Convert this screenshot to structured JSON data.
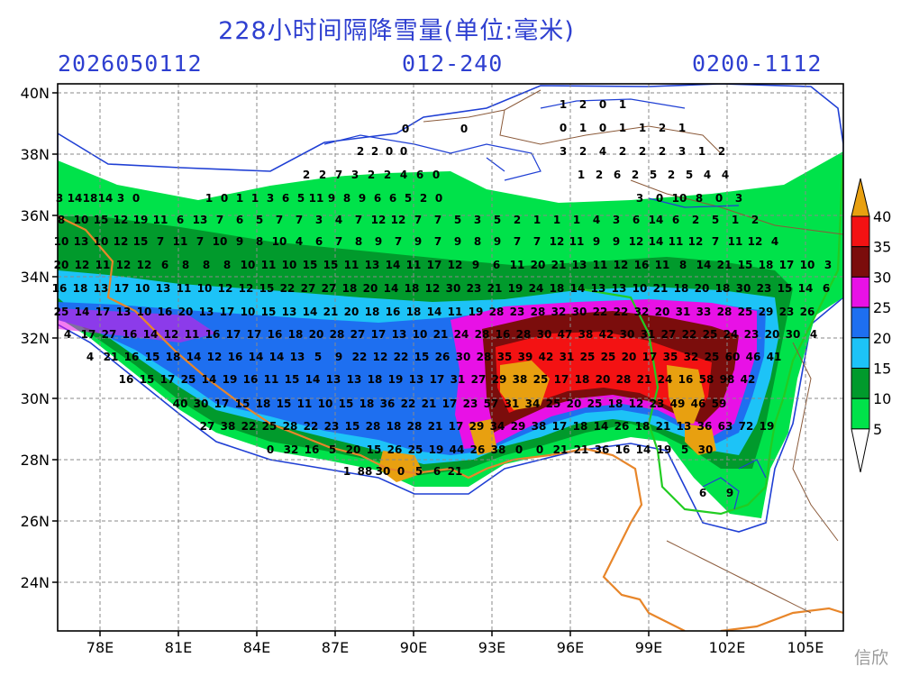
{
  "header": {
    "title": "228小时间隔降雪量(单位:毫米)",
    "init_time": "2026050112",
    "forecast_range": "012-240",
    "period": "0200-1112"
  },
  "map": {
    "lat_labels": [
      "40N",
      "38N",
      "36N",
      "34N",
      "32N",
      "30N",
      "28N",
      "26N",
      "24N"
    ],
    "lon_labels": [
      "78E",
      "81E",
      "84E",
      "87E",
      "90E",
      "93E",
      "96E",
      "99E",
      "102E",
      "105E"
    ],
    "grid": true
  },
  "colorbar": {
    "levels": [
      "5",
      "10",
      "15",
      "20",
      "25",
      "30",
      "35",
      "40"
    ],
    "colors": [
      "#00e24a",
      "#019a2c",
      "#1dc3f7",
      "#1e6ff0",
      "#e811e6",
      "#7b0d0c",
      "#f31213",
      "#e8a010"
    ]
  },
  "watermark": "信欣"
}
